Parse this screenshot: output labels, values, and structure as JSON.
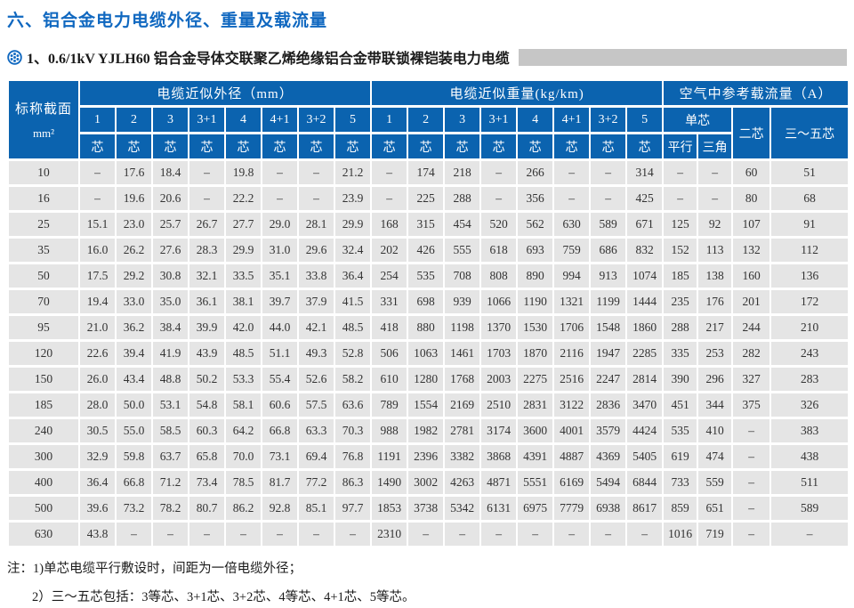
{
  "page": {
    "title": "六、铝合金电力电缆外径、重量及载流量",
    "subtitle": "1、0.6/1kV YJLH60 铝合金导体交联聚乙烯绝缘铝合金带联锁裸铠装电力电缆"
  },
  "colors": {
    "title_blue": "#1068c0",
    "header_blue": "#0b63af",
    "row_gray": "#e5e5e5",
    "bar_gray": "#c6c6c6"
  },
  "table": {
    "col1_header_line1": "标称截面",
    "col1_header_line2": "mm²",
    "groups": [
      {
        "label": "电缆近似外径（mm）"
      },
      {
        "label": "电缆近似重量(kg/km)"
      },
      {
        "label": "空气中参考载流量（A）"
      }
    ],
    "core_labels": [
      "1",
      "2",
      "3",
      "3+1",
      "4",
      "4+1",
      "3+2",
      "5"
    ],
    "core_suffix": "芯",
    "current_headers": {
      "single": "单芯",
      "single_sub": [
        "平行",
        "三角"
      ],
      "two": "二芯",
      "three_five": "三～五芯"
    },
    "rows": [
      {
        "section": "10",
        "diameter": [
          "–",
          "17.6",
          "18.4",
          "–",
          "19.8",
          "–",
          "–",
          "21.2"
        ],
        "weight": [
          "–",
          "174",
          "218",
          "–",
          "266",
          "–",
          "–",
          "314"
        ],
        "current": [
          "–",
          "–",
          "60",
          "51"
        ]
      },
      {
        "section": "16",
        "diameter": [
          "–",
          "19.6",
          "20.6",
          "–",
          "22.2",
          "–",
          "–",
          "23.9"
        ],
        "weight": [
          "–",
          "225",
          "288",
          "–",
          "356",
          "–",
          "–",
          "425"
        ],
        "current": [
          "–",
          "–",
          "80",
          "68"
        ]
      },
      {
        "section": "25",
        "diameter": [
          "15.1",
          "23.0",
          "25.7",
          "26.7",
          "27.7",
          "29.0",
          "28.1",
          "29.9"
        ],
        "weight": [
          "168",
          "315",
          "454",
          "520",
          "562",
          "630",
          "589",
          "671"
        ],
        "current": [
          "125",
          "92",
          "107",
          "91"
        ]
      },
      {
        "section": "35",
        "diameter": [
          "16.0",
          "26.2",
          "27.6",
          "28.3",
          "29.9",
          "31.0",
          "29.6",
          "32.4"
        ],
        "weight": [
          "202",
          "426",
          "555",
          "618",
          "693",
          "759",
          "686",
          "832"
        ],
        "current": [
          "152",
          "113",
          "132",
          "112"
        ]
      },
      {
        "section": "50",
        "diameter": [
          "17.5",
          "29.2",
          "30.8",
          "32.1",
          "33.5",
          "35.1",
          "33.8",
          "36.4"
        ],
        "weight": [
          "254",
          "535",
          "708",
          "808",
          "890",
          "994",
          "913",
          "1074"
        ],
        "current": [
          "185",
          "138",
          "160",
          "136"
        ]
      },
      {
        "section": "70",
        "diameter": [
          "19.4",
          "33.0",
          "35.0",
          "36.1",
          "38.1",
          "39.7",
          "37.9",
          "41.5"
        ],
        "weight": [
          "331",
          "698",
          "939",
          "1066",
          "1190",
          "1321",
          "1199",
          "1444"
        ],
        "current": [
          "235",
          "176",
          "201",
          "172"
        ]
      },
      {
        "section": "95",
        "diameter": [
          "21.0",
          "36.2",
          "38.4",
          "39.9",
          "42.0",
          "44.0",
          "42.1",
          "48.5"
        ],
        "weight": [
          "418",
          "880",
          "1198",
          "1370",
          "1530",
          "1706",
          "1548",
          "1860"
        ],
        "current": [
          "288",
          "217",
          "244",
          "210"
        ]
      },
      {
        "section": "120",
        "diameter": [
          "22.6",
          "39.4",
          "41.9",
          "43.9",
          "48.5",
          "51.1",
          "49.3",
          "52.8"
        ],
        "weight": [
          "506",
          "1063",
          "1461",
          "1703",
          "1870",
          "2116",
          "1947",
          "2285"
        ],
        "current": [
          "335",
          "253",
          "282",
          "243"
        ]
      },
      {
        "section": "150",
        "diameter": [
          "26.0",
          "43.4",
          "48.8",
          "50.2",
          "53.3",
          "55.4",
          "52.6",
          "58.2"
        ],
        "weight": [
          "610",
          "1280",
          "1768",
          "2003",
          "2275",
          "2516",
          "2247",
          "2814"
        ],
        "current": [
          "390",
          "296",
          "327",
          "283"
        ]
      },
      {
        "section": "185",
        "diameter": [
          "28.0",
          "50.0",
          "53.1",
          "54.8",
          "58.1",
          "60.6",
          "57.5",
          "63.6"
        ],
        "weight": [
          "789",
          "1554",
          "2169",
          "2510",
          "2831",
          "3122",
          "2836",
          "3470"
        ],
        "current": [
          "451",
          "344",
          "375",
          "326"
        ]
      },
      {
        "section": "240",
        "diameter": [
          "30.5",
          "55.0",
          "58.5",
          "60.3",
          "64.2",
          "66.8",
          "63.3",
          "70.3"
        ],
        "weight": [
          "988",
          "1982",
          "2781",
          "3174",
          "3600",
          "4001",
          "3579",
          "4424"
        ],
        "current": [
          "535",
          "410",
          "–",
          "383"
        ]
      },
      {
        "section": "300",
        "diameter": [
          "32.9",
          "59.8",
          "63.7",
          "65.8",
          "70.0",
          "73.1",
          "69.4",
          "76.8"
        ],
        "weight": [
          "1191",
          "2396",
          "3382",
          "3868",
          "4391",
          "4887",
          "4369",
          "5405"
        ],
        "current": [
          "619",
          "474",
          "–",
          "438"
        ]
      },
      {
        "section": "400",
        "diameter": [
          "36.4",
          "66.8",
          "71.2",
          "73.4",
          "78.5",
          "81.7",
          "77.2",
          "86.3"
        ],
        "weight": [
          "1490",
          "3002",
          "4263",
          "4871",
          "5551",
          "6169",
          "5494",
          "6844"
        ],
        "current": [
          "733",
          "559",
          "–",
          "511"
        ]
      },
      {
        "section": "500",
        "diameter": [
          "39.6",
          "73.2",
          "78.2",
          "80.7",
          "86.2",
          "92.8",
          "85.1",
          "97.7"
        ],
        "weight": [
          "1853",
          "3738",
          "5342",
          "6131",
          "6975",
          "7779",
          "6938",
          "8617"
        ],
        "current": [
          "859",
          "651",
          "–",
          "589"
        ]
      },
      {
        "section": "630",
        "diameter": [
          "43.8",
          "–",
          "–",
          "–",
          "–",
          "–",
          "–",
          "–"
        ],
        "weight": [
          "2310",
          "–",
          "–",
          "–",
          "–",
          "–",
          "–",
          "–"
        ],
        "current": [
          "1016",
          "719",
          "–",
          "–"
        ]
      }
    ]
  },
  "notes": {
    "label": "注：",
    "items": [
      "1)单芯电缆平行敷设时，间距为一倍电缆外径；",
      "2）三～五芯包括：3等芯、3+1芯、3+2芯、4等芯、4+1芯、5等芯。"
    ]
  }
}
